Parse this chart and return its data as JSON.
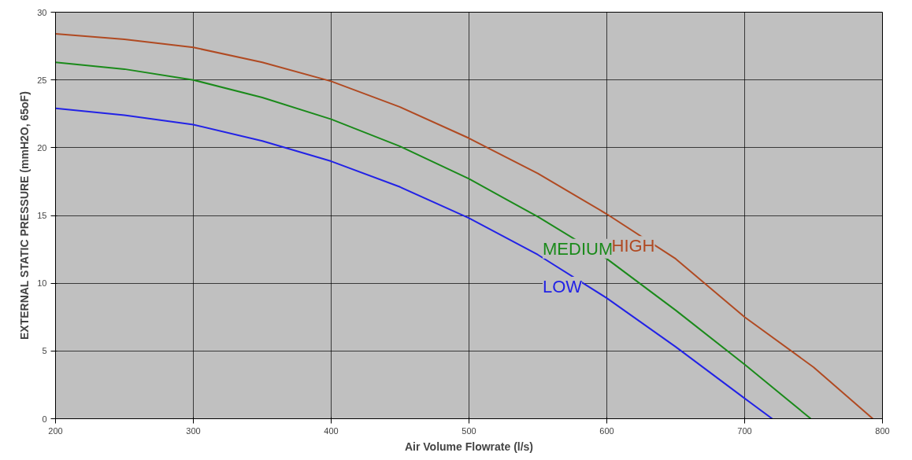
{
  "chart_data": {
    "type": "line",
    "xlabel": "Air Volume Flowrate (l/s)",
    "ylabel": "EXTERNAL STATIC PRESSURE (mmH2O, 65oF)",
    "xlim": [
      200,
      800
    ],
    "ylim": [
      0,
      30
    ],
    "xticks": [
      200,
      300,
      400,
      500,
      600,
      700,
      800
    ],
    "yticks": [
      0,
      5,
      10,
      15,
      20,
      25,
      30
    ],
    "grid": true,
    "marker": "none",
    "line_style": "solid",
    "series": [
      {
        "name": "LOW",
        "color": "#2222e6",
        "x": [
          200,
          250,
          300,
          350,
          400,
          450,
          500,
          550,
          600,
          650,
          700,
          720
        ],
        "values": [
          22.9,
          22.4,
          21.7,
          20.5,
          19.0,
          17.1,
          14.8,
          12.1,
          8.9,
          5.3,
          1.5,
          0
        ]
      },
      {
        "name": "MEDIUM",
        "color": "#1a8a1a",
        "x": [
          200,
          250,
          300,
          350,
          400,
          450,
          500,
          550,
          600,
          650,
          700,
          748
        ],
        "values": [
          26.3,
          25.8,
          25.0,
          23.7,
          22.1,
          20.1,
          17.7,
          14.9,
          11.8,
          8.0,
          4.0,
          0
        ]
      },
      {
        "name": "HIGH",
        "color": "#b04a22",
        "x": [
          200,
          250,
          300,
          350,
          400,
          450,
          500,
          550,
          600,
          650,
          700,
          750,
          793
        ],
        "values": [
          28.4,
          28.0,
          27.4,
          26.3,
          24.9,
          23.0,
          20.7,
          18.1,
          15.1,
          11.8,
          7.5,
          3.8,
          0
        ]
      }
    ]
  }
}
